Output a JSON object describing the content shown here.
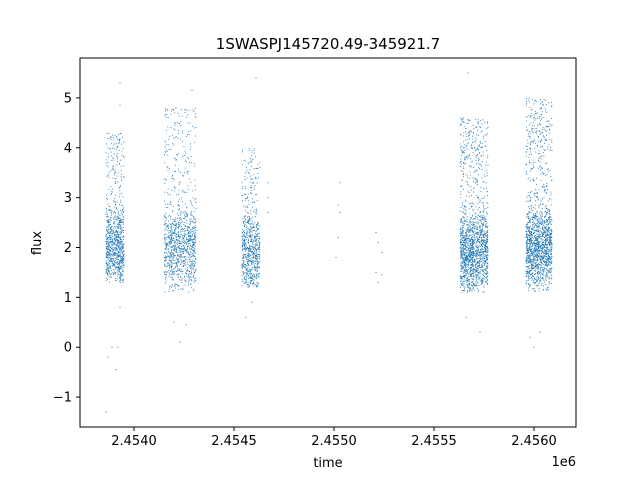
{
  "chart_data": {
    "type": "scatter",
    "title": "1SWASPJ145720.49-345921.7",
    "xlabel": "time",
    "ylabel": "flux",
    "x_offset_label": "1e6",
    "xlim": [
      2.45373,
      2.45621
    ],
    "ylim": [
      -1.6,
      5.8
    ],
    "x_ticks": [
      2.454,
      2.4545,
      2.455,
      2.4555,
      2.456
    ],
    "x_tick_labels": [
      "2.4540",
      "2.4545",
      "2.4550",
      "2.4555",
      "2.4560"
    ],
    "y_ticks": [
      -1,
      0,
      1,
      2,
      3,
      4,
      5
    ],
    "y_tick_labels": [
      "−1",
      "0",
      "1",
      "2",
      "3",
      "4",
      "5"
    ],
    "grid": false,
    "legend": "none",
    "marker_color": "#1f77b4",
    "clusters": [
      {
        "x_start": 2.45386,
        "x_end": 2.45395,
        "y_low": 1.3,
        "y_high": 4.3,
        "median": 2.0,
        "count": 900
      },
      {
        "x_start": 2.45415,
        "x_end": 2.45431,
        "y_low": 1.1,
        "y_high": 4.8,
        "median": 2.0,
        "count": 1100
      },
      {
        "x_start": 2.45454,
        "x_end": 2.45463,
        "y_low": 1.2,
        "y_high": 4.0,
        "median": 1.9,
        "count": 700
      },
      {
        "x_start": 2.45563,
        "x_end": 2.45577,
        "y_low": 1.1,
        "y_high": 4.6,
        "median": 1.9,
        "count": 1600
      },
      {
        "x_start": 2.45596,
        "x_end": 2.45609,
        "y_low": 1.1,
        "y_high": 5.0,
        "median": 2.0,
        "count": 1600
      }
    ],
    "outliers": [
      {
        "x": 2.45386,
        "y": -1.3
      },
      {
        "x": 2.45387,
        "y": -0.2
      },
      {
        "x": 2.45389,
        "y": 0.0
      },
      {
        "x": 2.45392,
        "y": 0.0
      },
      {
        "x": 2.45391,
        "y": -0.45
      },
      {
        "x": 2.45393,
        "y": 5.3
      },
      {
        "x": 2.45393,
        "y": 4.85
      },
      {
        "x": 2.45393,
        "y": 0.8
      },
      {
        "x": 2.4542,
        "y": 0.5
      },
      {
        "x": 2.45423,
        "y": 0.1
      },
      {
        "x": 2.45426,
        "y": 0.45
      },
      {
        "x": 2.45429,
        "y": 5.15
      },
      {
        "x": 2.45421,
        "y": 4.8
      },
      {
        "x": 2.45456,
        "y": 0.6
      },
      {
        "x": 2.45459,
        "y": 0.9
      },
      {
        "x": 2.45461,
        "y": 5.4
      },
      {
        "x": 2.45467,
        "y": 3.3
      },
      {
        "x": 2.45467,
        "y": 3.0
      },
      {
        "x": 2.45467,
        "y": 2.7
      },
      {
        "x": 2.45502,
        "y": 2.85
      },
      {
        "x": 2.45503,
        "y": 2.7
      },
      {
        "x": 2.45502,
        "y": 2.2
      },
      {
        "x": 2.45501,
        "y": 1.8
      },
      {
        "x": 2.45503,
        "y": 3.3
      },
      {
        "x": 2.45521,
        "y": 2.3
      },
      {
        "x": 2.45522,
        "y": 2.1
      },
      {
        "x": 2.45521,
        "y": 1.5
      },
      {
        "x": 2.45522,
        "y": 1.3
      },
      {
        "x": 2.45524,
        "y": 1.9
      },
      {
        "x": 2.45524,
        "y": 1.45
      },
      {
        "x": 2.45567,
        "y": 5.5
      },
      {
        "x": 2.45573,
        "y": 0.3
      },
      {
        "x": 2.45566,
        "y": 0.6
      },
      {
        "x": 2.456,
        "y": 0.0
      },
      {
        "x": 2.45598,
        "y": 0.2
      },
      {
        "x": 2.45603,
        "y": 0.3
      }
    ]
  }
}
